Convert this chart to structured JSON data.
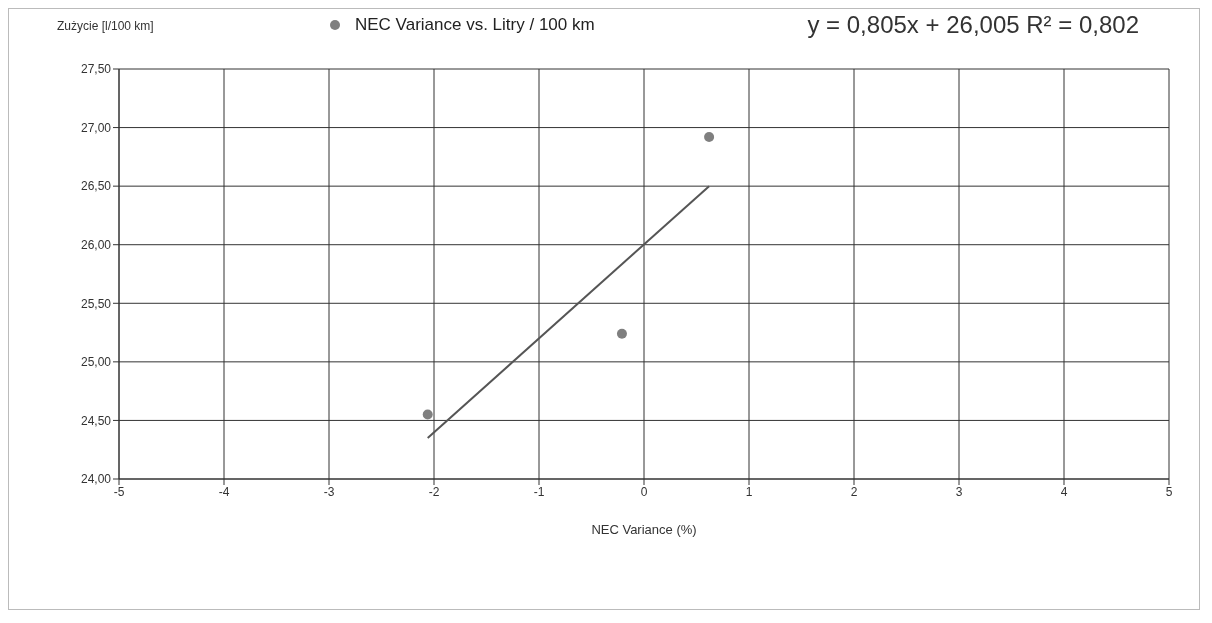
{
  "chart_data": {
    "type": "scatter",
    "ylabel": "Zużycie [l/100 km]",
    "xlabel": "NEC Variance (%)",
    "annotations": [
      "y = 0,805x + 26,005  R² = 0,802"
    ],
    "series": [
      {
        "name": "NEC Variance vs. Litry / 100 km",
        "color": "#7f7f7f",
        "marker": "circle",
        "x": [
          -2.06,
          -0.21,
          0.62
        ],
        "values": [
          24.55,
          25.24,
          26.92
        ]
      },
      {
        "type": "line",
        "color": "#555555",
        "x": [
          -2.06,
          0.62
        ],
        "values": [
          24.35,
          26.5
        ]
      }
    ],
    "xlim": [
      -5,
      5
    ],
    "xticks": [
      -5,
      -4,
      -3,
      -2,
      -1,
      0,
      1,
      2,
      3,
      4,
      5
    ],
    "ylim": [
      24,
      27.5
    ],
    "yticks": [
      {
        "value": 24,
        "label": "24,00"
      },
      {
        "value": 24.5,
        "label": "24,50"
      },
      {
        "value": 25,
        "label": "25,00"
      },
      {
        "value": 25.5,
        "label": "25,50"
      },
      {
        "value": 26,
        "label": "26,00"
      },
      {
        "value": 26.5,
        "label": "26,50"
      },
      {
        "value": 27,
        "label": "27,00"
      },
      {
        "value": 27.5,
        "label": "27,50"
      }
    ],
    "grid": true,
    "legend": "top",
    "line_style": "solid"
  }
}
